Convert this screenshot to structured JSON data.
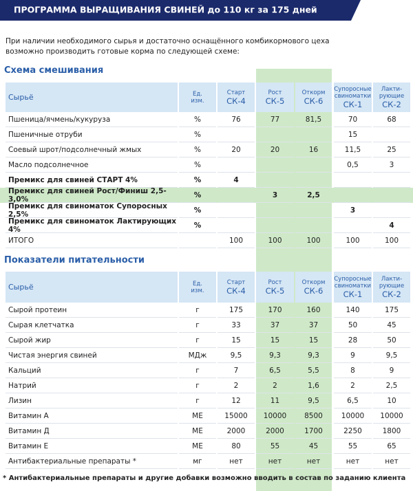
{
  "header": {
    "title": "ПРОГРАММА ВЫРАЩИВАНИЯ СВИНЕЙ до 110 кг за 175 дней"
  },
  "intro": [
    "При наличии необходимого сырья и достаточно оснащённого комбикормового цеха",
    "возможно производить готовые корма по следующей схеме:"
  ],
  "tables": [
    {
      "title": "Схема смешивания",
      "columns": [
        {
          "lines": [
            "Сырьё"
          ]
        },
        {
          "lines": [
            "Ед.",
            "изм."
          ]
        },
        {
          "lines": [
            "Старт"
          ],
          "code": "СК-4"
        },
        {
          "lines": [
            "Рост"
          ],
          "code": "СК-5"
        },
        {
          "lines": [
            "Откорм"
          ],
          "code": "СК-6"
        },
        {
          "lines": [
            "Супоросные",
            "свиноматки"
          ],
          "code": "СК-1"
        },
        {
          "lines": [
            "Лакти-",
            "рующие"
          ],
          "code": "СК-2"
        }
      ],
      "rows": [
        {
          "cells": [
            "Пшеница/ячмень/кукуруза",
            "%",
            "76",
            "77",
            "81,5",
            "70",
            "68"
          ]
        },
        {
          "cells": [
            "Пшеничные отруби",
            "%",
            null,
            null,
            null,
            "15",
            null
          ]
        },
        {
          "cells": [
            "Соевый шрот/подсолнечный жмых",
            "%",
            "20",
            "20",
            "16",
            "11,5",
            "25"
          ]
        },
        {
          "cells": [
            "Масло подсолнечное",
            "%",
            null,
            null,
            null,
            "0,5",
            "3"
          ]
        },
        {
          "cells": [
            "Премикс для свиней СТАРТ 4%",
            "%",
            "4",
            null,
            null,
            null,
            null
          ],
          "bold": true
        },
        {
          "cells": [
            "Премикс для свиней Рост/Финиш 2,5-3,0%",
            "%",
            null,
            "3",
            "2,5",
            null,
            null
          ],
          "bold": true,
          "highlight": true
        },
        {
          "cells": [
            "Премикс для свиноматок Супоросных 2,5%",
            "%",
            null,
            null,
            null,
            "3",
            null
          ],
          "bold": true
        },
        {
          "cells": [
            "Премикс для свиноматок Лактирующих 4%",
            "%",
            null,
            null,
            null,
            null,
            "4"
          ],
          "bold": true
        },
        {
          "cells": [
            "ИТОГО",
            null,
            "100",
            "100",
            "100",
            "100",
            "100"
          ]
        }
      ]
    },
    {
      "title": "Показатели питательности",
      "columns": [
        {
          "lines": [
            "Сырьё"
          ]
        },
        {
          "lines": [
            "Ед.",
            "изм."
          ]
        },
        {
          "lines": [
            "Старт"
          ],
          "code": "СК-4"
        },
        {
          "lines": [
            "Рост"
          ],
          "code": "СК-5"
        },
        {
          "lines": [
            "Откорм"
          ],
          "code": "СК-6"
        },
        {
          "lines": [
            "Супоросные",
            "свиноматки"
          ],
          "code": "СК-1"
        },
        {
          "lines": [
            "Лакти-",
            "рующие"
          ],
          "code": "СК-2"
        }
      ],
      "rows": [
        {
          "cells": [
            "Сырой протеин",
            "г",
            "175",
            "170",
            "160",
            "140",
            "175"
          ]
        },
        {
          "cells": [
            "Сырая клетчатка",
            "г",
            "33",
            "37",
            "37",
            "50",
            "45"
          ]
        },
        {
          "cells": [
            "Сырой жир",
            "г",
            "15",
            "15",
            "15",
            "28",
            "50"
          ]
        },
        {
          "cells": [
            "Чистая энергия свиней",
            "МДж",
            "9,5",
            "9,3",
            "9,3",
            "9",
            "9,5"
          ]
        },
        {
          "cells": [
            "Кальций",
            "г",
            "7",
            "6,5",
            "5,5",
            "8",
            "9"
          ]
        },
        {
          "cells": [
            "Натрий",
            "г",
            "2",
            "2",
            "1,6",
            "2",
            "2,5"
          ]
        },
        {
          "cells": [
            "Лизин",
            "г",
            "12",
            "11",
            "9,5",
            "6,5",
            "10"
          ]
        },
        {
          "cells": [
            "Витамин А",
            "МЕ",
            "15000",
            "10000",
            "8500",
            "10000",
            "10000"
          ]
        },
        {
          "cells": [
            "Витамин Д",
            "МЕ",
            "2000",
            "2000",
            "1700",
            "2250",
            "1800"
          ]
        },
        {
          "cells": [
            "Витамин Е",
            "МЕ",
            "80",
            "55",
            "45",
            "55",
            "65"
          ]
        },
        {
          "cells": [
            "Антибактериальные препараты *",
            "мг",
            "нет",
            "нет",
            "нет",
            "нет",
            "нет"
          ]
        }
      ]
    }
  ],
  "footnote": "* Антибактериальные препараты и другие добавки возможно вводить в состав по заданию клиента"
}
